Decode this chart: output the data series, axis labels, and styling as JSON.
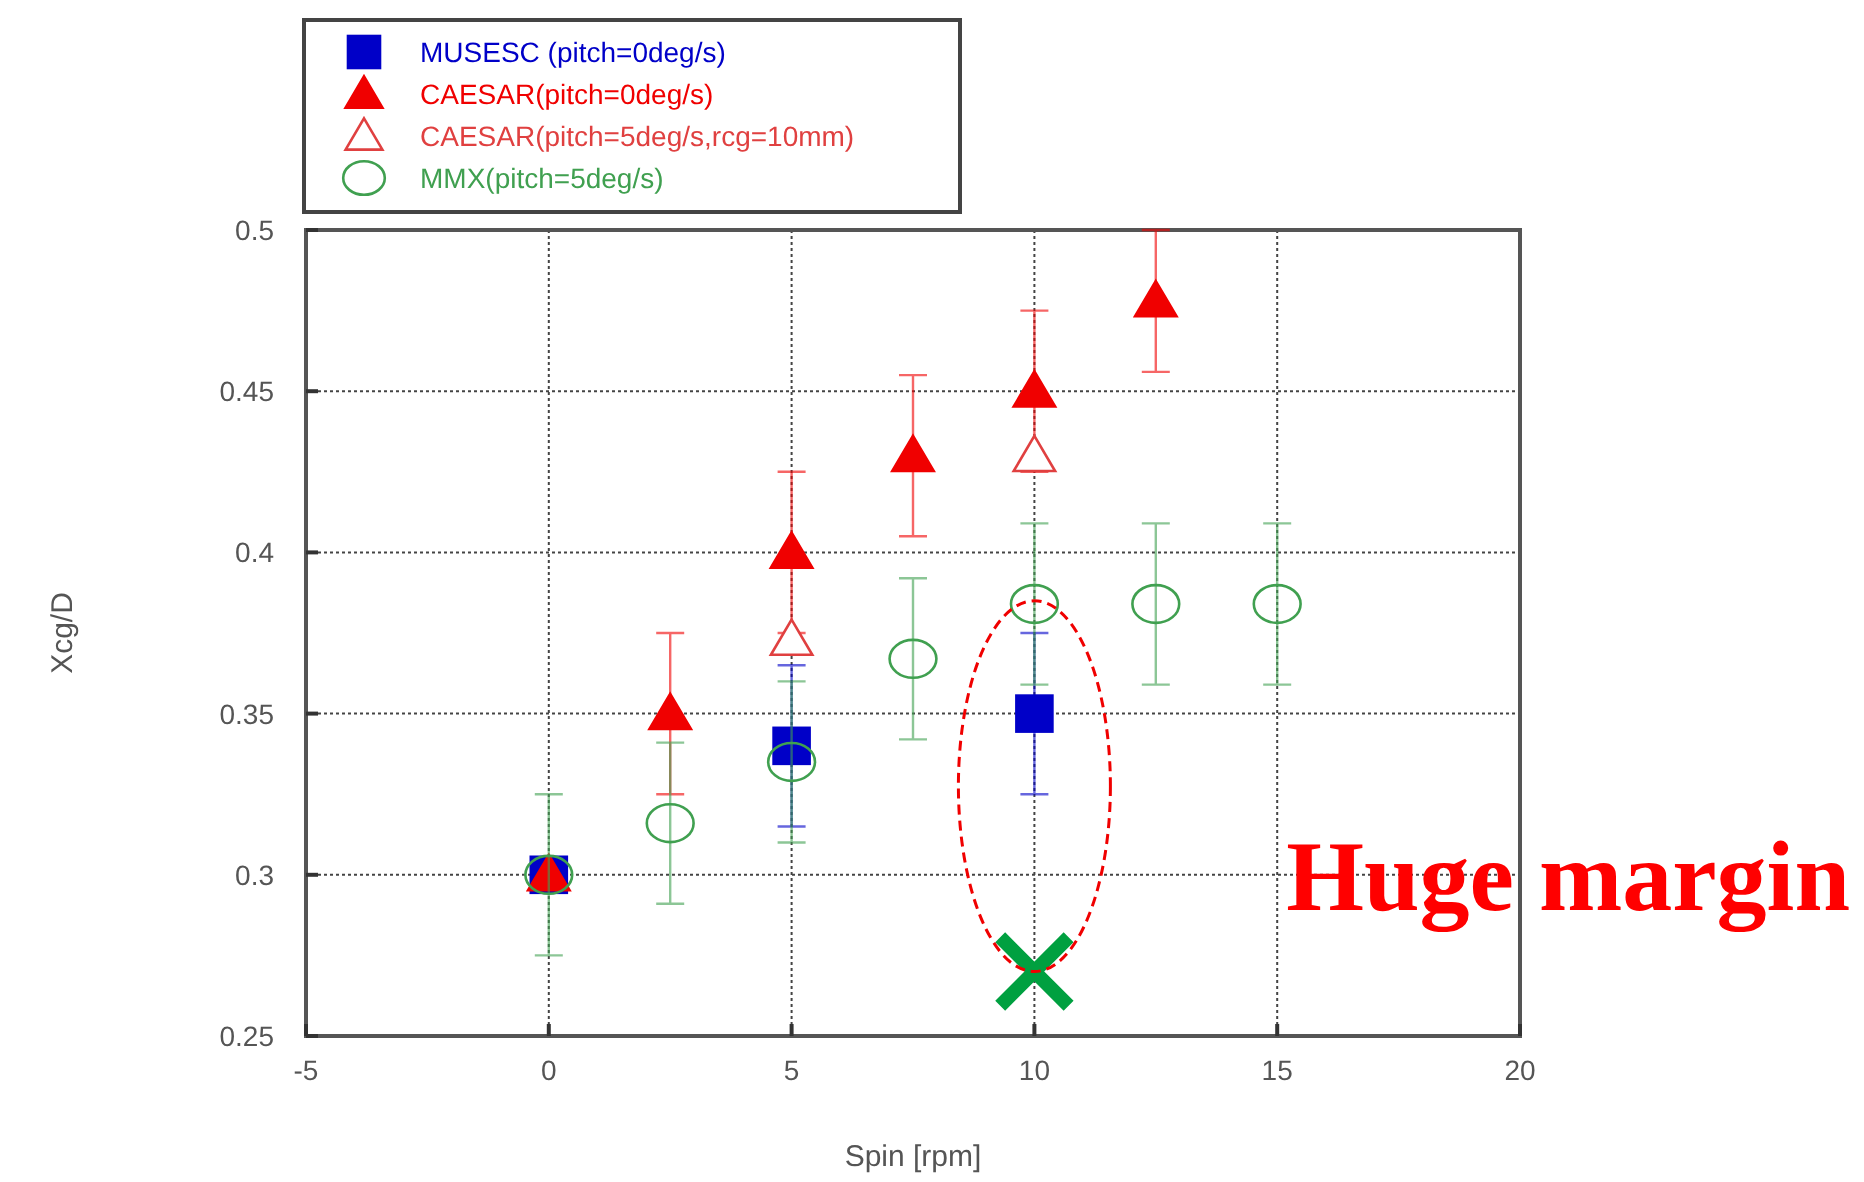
{
  "chart_data": {
    "type": "scatter",
    "xlabel": "Spin [rpm]",
    "ylabel": "Xcg/D",
    "xlim": [
      -5,
      20
    ],
    "xticks": [
      -5,
      0,
      5,
      10,
      15,
      20
    ],
    "ylim": [
      0.25,
      0.5
    ],
    "yticks": [
      0.25,
      0.3,
      0.35,
      0.4,
      0.45,
      0.5
    ],
    "grid": true,
    "legend": "top left",
    "annotations": [
      "Huge margin"
    ],
    "series": [
      {
        "name": "MUSESC (pitch=0deg/s)",
        "color": "#0000c8",
        "marker": "square",
        "x": [
          0,
          5,
          10
        ],
        "values": [
          0.3,
          0.34,
          0.35
        ],
        "errors": [
          null,
          0.025,
          0.025
        ]
      },
      {
        "name": "CAESAR(pitch=0deg/s)",
        "color": "#f00000",
        "marker": "triangle",
        "x": [
          0,
          2.5,
          5,
          7.5,
          10,
          12.5
        ],
        "values": [
          0.3,
          0.35,
          0.4,
          0.43,
          0.45,
          0.478
        ],
        "errors": [
          null,
          0.025,
          0.025,
          0.025,
          0.025,
          0.022
        ]
      },
      {
        "name": "CAESAR(pitch=5deg/s,rcg=10mm)",
        "color": "#e04040",
        "marker": "triangle",
        "x": [
          5,
          10
        ],
        "values": [
          0.373,
          0.43
        ]
      },
      {
        "name": "MMX(pitch=5deg/s)",
        "color": "#40a050",
        "marker": "circle",
        "x": [
          0,
          2.5,
          5,
          7.5,
          10,
          12.5,
          15
        ],
        "values": [
          0.3,
          0.316,
          0.335,
          0.367,
          0.384,
          0.384,
          0.384
        ],
        "errors": [
          0.025,
          0.025,
          0.025,
          0.025,
          0.025,
          0.025,
          0.025
        ]
      },
      {
        "color": "#00a040",
        "marker": "cross",
        "x": [
          10
        ],
        "values": [
          0.27
        ]
      }
    ]
  }
}
